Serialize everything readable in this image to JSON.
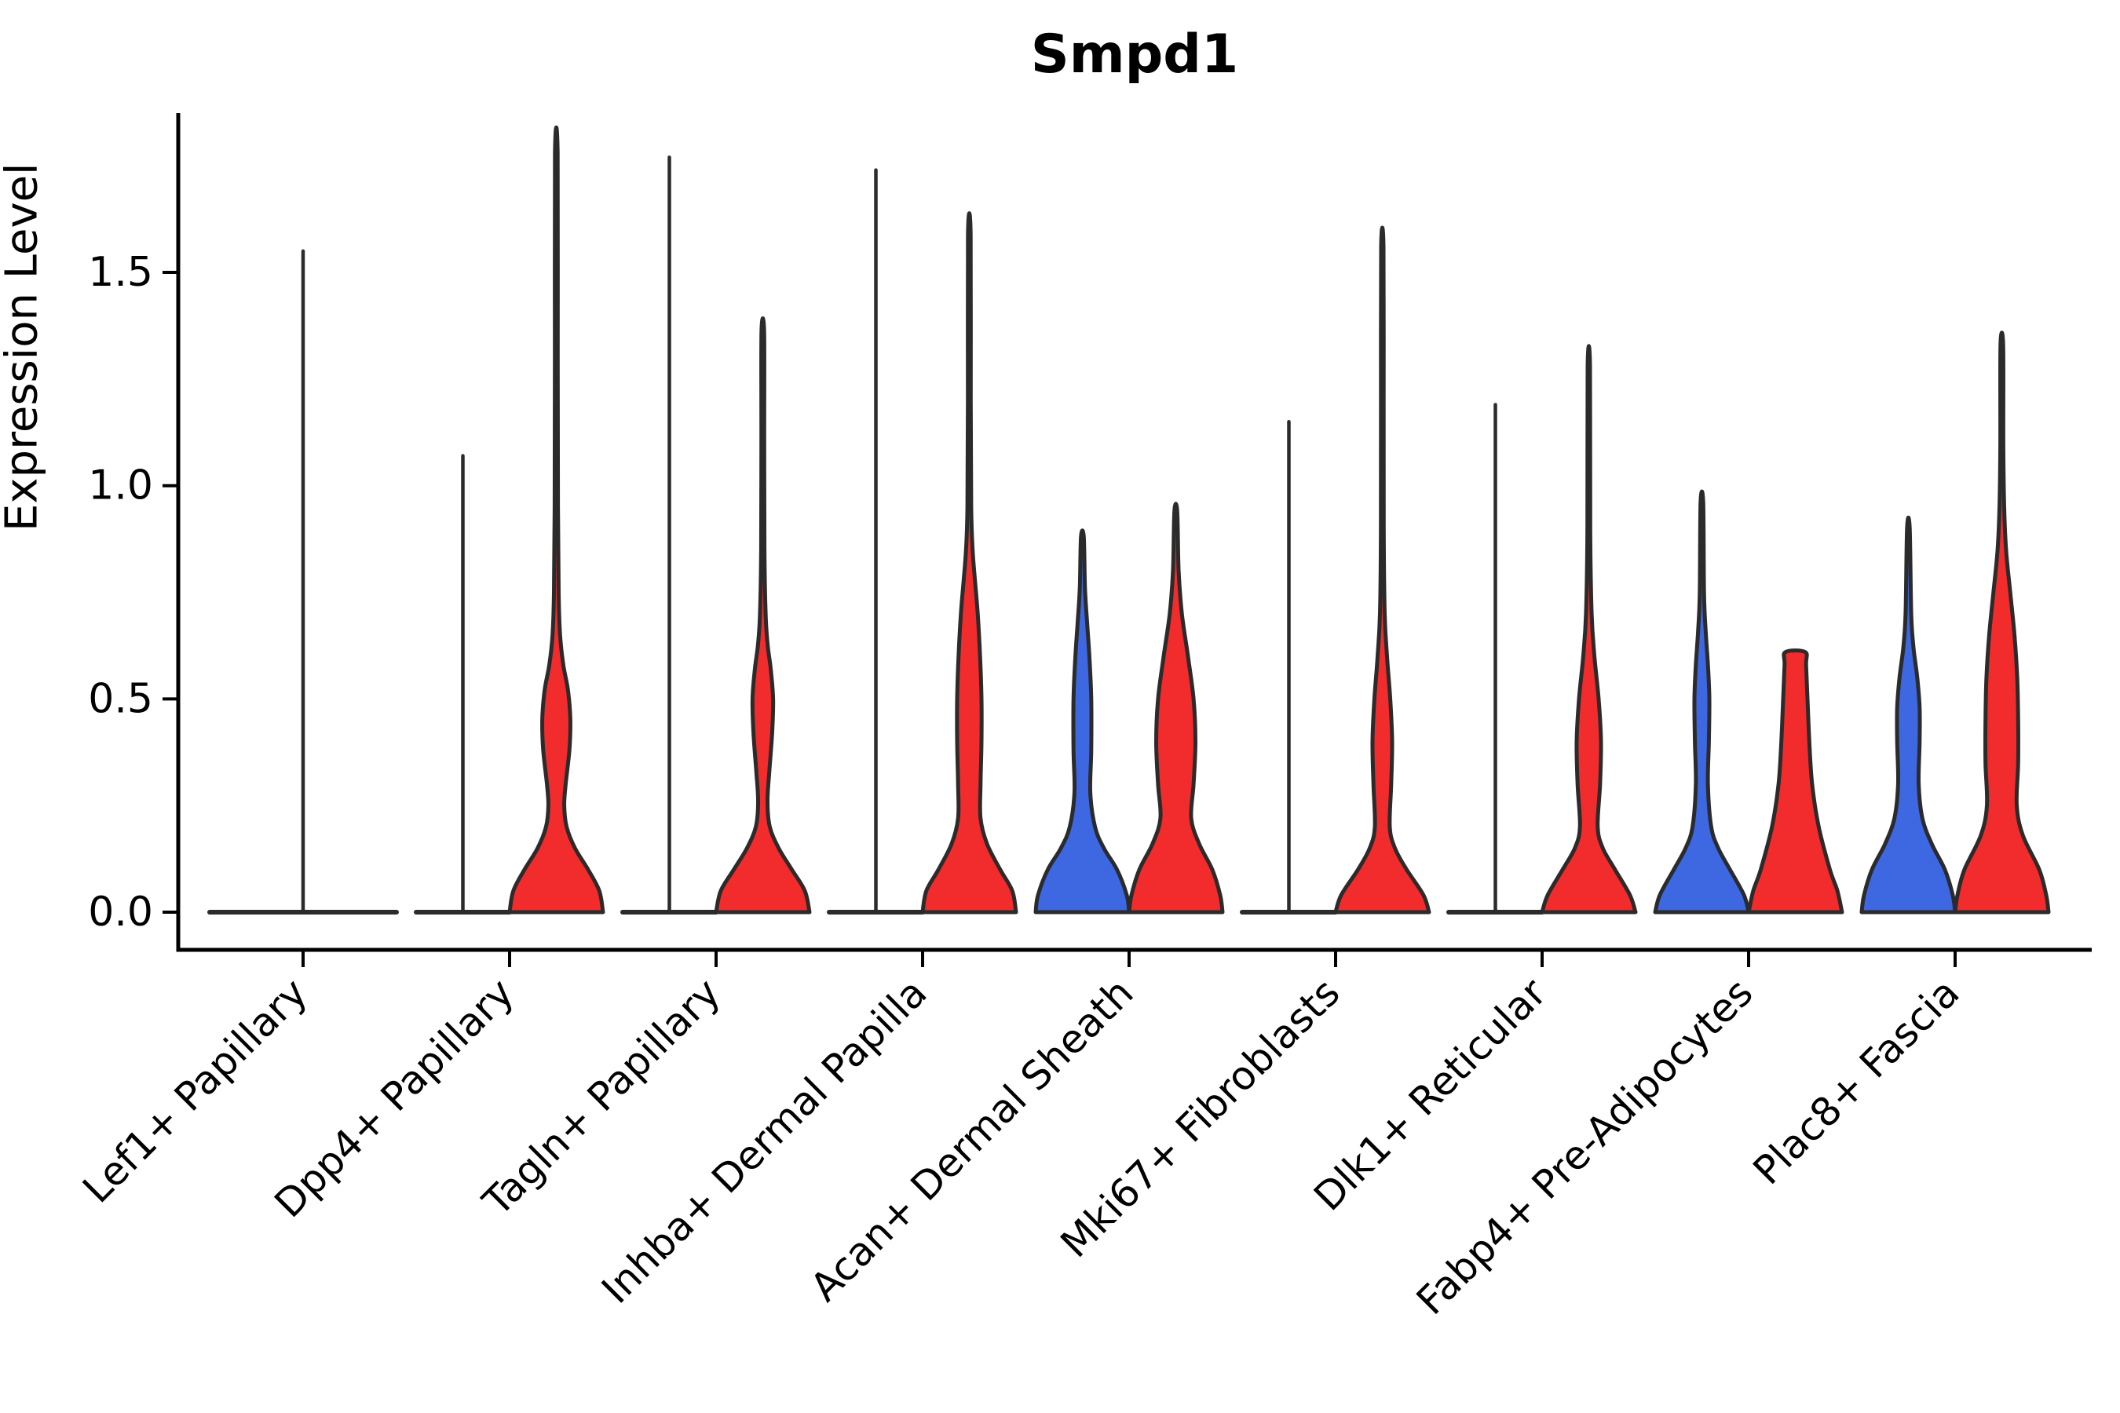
{
  "title": "Smpd1",
  "y_axis": {
    "label": "Expression Level",
    "tick_labels": [
      "0.0",
      "0.5",
      "1.0",
      "1.5"
    ],
    "tick_values": [
      0,
      0.5,
      1.0,
      1.5
    ]
  },
  "x_axis": {
    "categories": [
      "Lef1+ Papillary",
      "Dpp4+ Papillary",
      "Tagln+ Papillary",
      "Inhba+ Dermal Papilla",
      "Acan+ Dermal Sheath",
      "Mki67+ Fibroblasts",
      "Dlk1+ Reticular",
      "Fabp4+ Pre-Adipocytes",
      "Plac8+ Fascia"
    ]
  },
  "palette": {
    "blue": "#3D68E1",
    "red": "#F22C2C",
    "outline": "#2B2B2B",
    "axis": "#000000",
    "background": "#FFFFFF"
  },
  "chart_data": {
    "type": "violin",
    "title": "Smpd1",
    "xlabel": "",
    "ylabel": "Expression Level",
    "ylim": [
      -0.09,
      1.87
    ],
    "y_ticks": [
      0,
      0.5,
      1.0,
      1.5
    ],
    "y_tick_labels": [
      "0.0",
      "0.5",
      "1.0",
      "1.5"
    ],
    "grid": false,
    "legend": "none",
    "categories": [
      "Lef1+ Papillary",
      "Dpp4+ Papillary",
      "Tagln+ Papillary",
      "Inhba+ Dermal Papilla",
      "Acan+ Dermal Sheath",
      "Mki67+ Fibroblasts",
      "Dlk1+ Reticular",
      "Fabp4+ Pre-Adipocytes",
      "Plac8+ Fascia"
    ],
    "violins": [
      {
        "category": "Lef1+ Papillary",
        "side": "full",
        "color": "none",
        "max": 1.55,
        "profile": "flat"
      },
      {
        "category": "Dpp4+ Papillary",
        "side": "left",
        "color": "blue",
        "max": 1.07,
        "profile": "flat"
      },
      {
        "category": "Dpp4+ Papillary",
        "side": "right",
        "color": "red",
        "max": 1.78,
        "profile": [
          [
            0,
            1
          ],
          [
            0.05,
            0.92
          ],
          [
            0.1,
            0.68
          ],
          [
            0.15,
            0.4
          ],
          [
            0.2,
            0.22
          ],
          [
            0.25,
            0.17
          ],
          [
            0.3,
            0.2
          ],
          [
            0.38,
            0.28
          ],
          [
            0.45,
            0.3
          ],
          [
            0.52,
            0.25
          ],
          [
            0.58,
            0.15
          ],
          [
            0.65,
            0.08
          ],
          [
            0.75,
            0.05
          ],
          [
            0.95,
            0.035
          ],
          [
            1.3,
            0.03
          ],
          [
            1.78,
            0.028
          ]
        ]
      },
      {
        "category": "Tagln+ Papillary",
        "side": "left",
        "color": "blue",
        "max": 1.77,
        "profile": "flat"
      },
      {
        "category": "Tagln+ Papillary",
        "side": "right",
        "color": "red",
        "max": 1.36,
        "profile": [
          [
            0,
            1
          ],
          [
            0.05,
            0.9
          ],
          [
            0.1,
            0.62
          ],
          [
            0.15,
            0.34
          ],
          [
            0.2,
            0.15
          ],
          [
            0.26,
            0.1
          ],
          [
            0.33,
            0.14
          ],
          [
            0.42,
            0.2
          ],
          [
            0.5,
            0.22
          ],
          [
            0.57,
            0.17
          ],
          [
            0.63,
            0.1
          ],
          [
            0.7,
            0.06
          ],
          [
            0.85,
            0.035
          ],
          [
            1.1,
            0.03
          ],
          [
            1.36,
            0.028
          ]
        ]
      },
      {
        "category": "Inhba+ Dermal Papilla",
        "side": "left",
        "color": "blue",
        "max": 1.74,
        "profile": "flat"
      },
      {
        "category": "Inhba+ Dermal Papilla",
        "side": "right",
        "color": "red",
        "max": 1.59,
        "profile": [
          [
            0,
            1
          ],
          [
            0.05,
            0.92
          ],
          [
            0.1,
            0.66
          ],
          [
            0.16,
            0.38
          ],
          [
            0.22,
            0.24
          ],
          [
            0.3,
            0.24
          ],
          [
            0.4,
            0.26
          ],
          [
            0.5,
            0.26
          ],
          [
            0.6,
            0.23
          ],
          [
            0.7,
            0.18
          ],
          [
            0.78,
            0.12
          ],
          [
            0.85,
            0.07
          ],
          [
            0.95,
            0.04
          ],
          [
            1.2,
            0.03
          ],
          [
            1.59,
            0.028
          ]
        ]
      },
      {
        "category": "Acan+ Dermal Sheath",
        "side": "left",
        "color": "blue",
        "max": 0.88,
        "profile": [
          [
            0,
            1
          ],
          [
            0.04,
            0.95
          ],
          [
            0.1,
            0.74
          ],
          [
            0.15,
            0.46
          ],
          [
            0.2,
            0.27
          ],
          [
            0.28,
            0.17
          ],
          [
            0.38,
            0.19
          ],
          [
            0.5,
            0.19
          ],
          [
            0.6,
            0.15
          ],
          [
            0.68,
            0.1
          ],
          [
            0.76,
            0.055
          ],
          [
            0.88,
            0.03
          ]
        ]
      },
      {
        "category": "Acan+ Dermal Sheath",
        "side": "right",
        "color": "red",
        "max": 0.94,
        "profile": [
          [
            0,
            1
          ],
          [
            0.04,
            0.95
          ],
          [
            0.1,
            0.78
          ],
          [
            0.16,
            0.5
          ],
          [
            0.22,
            0.33
          ],
          [
            0.3,
            0.38
          ],
          [
            0.4,
            0.42
          ],
          [
            0.5,
            0.38
          ],
          [
            0.6,
            0.26
          ],
          [
            0.7,
            0.13
          ],
          [
            0.8,
            0.06
          ],
          [
            0.94,
            0.03
          ]
        ]
      },
      {
        "category": "Mki67+ Fibroblasts",
        "side": "left",
        "color": "blue",
        "max": 1.15,
        "profile": "flat"
      },
      {
        "category": "Mki67+ Fibroblasts",
        "side": "right",
        "color": "red",
        "max": 1.56,
        "profile": [
          [
            0,
            1
          ],
          [
            0.04,
            0.88
          ],
          [
            0.1,
            0.52
          ],
          [
            0.15,
            0.27
          ],
          [
            0.2,
            0.16
          ],
          [
            0.3,
            0.19
          ],
          [
            0.4,
            0.21
          ],
          [
            0.5,
            0.17
          ],
          [
            0.6,
            0.1
          ],
          [
            0.7,
            0.05
          ],
          [
            0.9,
            0.03
          ],
          [
            1.2,
            0.028
          ],
          [
            1.56,
            0.026
          ]
        ]
      },
      {
        "category": "Dlk1+ Reticular",
        "side": "left",
        "color": "blue",
        "max": 1.19,
        "profile": "flat"
      },
      {
        "category": "Dlk1+ Reticular",
        "side": "right",
        "color": "red",
        "max": 1.28,
        "profile": [
          [
            0,
            1
          ],
          [
            0.04,
            0.88
          ],
          [
            0.1,
            0.56
          ],
          [
            0.15,
            0.3
          ],
          [
            0.2,
            0.19
          ],
          [
            0.3,
            0.24
          ],
          [
            0.4,
            0.26
          ],
          [
            0.5,
            0.21
          ],
          [
            0.6,
            0.12
          ],
          [
            0.7,
            0.06
          ],
          [
            0.9,
            0.03
          ],
          [
            1.28,
            0.026
          ]
        ]
      },
      {
        "category": "Fabp4+ Pre-Adipocytes",
        "side": "left",
        "color": "blue",
        "max": 0.96,
        "profile": [
          [
            0,
            1
          ],
          [
            0.04,
            0.9
          ],
          [
            0.1,
            0.6
          ],
          [
            0.15,
            0.35
          ],
          [
            0.2,
            0.2
          ],
          [
            0.3,
            0.13
          ],
          [
            0.4,
            0.15
          ],
          [
            0.5,
            0.16
          ],
          [
            0.58,
            0.13
          ],
          [
            0.66,
            0.08
          ],
          [
            0.75,
            0.045
          ],
          [
            0.96,
            0.028
          ]
        ]
      },
      {
        "category": "Fabp4+ Pre-Adipocytes",
        "side": "right",
        "color": "red",
        "max": 0.61,
        "flat_top": true,
        "profile": [
          [
            0,
            1
          ],
          [
            0.05,
            0.9
          ],
          [
            0.1,
            0.74
          ],
          [
            0.2,
            0.5
          ],
          [
            0.3,
            0.36
          ],
          [
            0.4,
            0.3
          ],
          [
            0.5,
            0.26
          ],
          [
            0.58,
            0.23
          ],
          [
            0.61,
            0.21
          ]
        ]
      },
      {
        "category": "Plac8+ Fascia",
        "side": "left",
        "color": "blue",
        "max": 0.9,
        "profile": [
          [
            0,
            1
          ],
          [
            0.04,
            0.95
          ],
          [
            0.1,
            0.78
          ],
          [
            0.16,
            0.5
          ],
          [
            0.22,
            0.3
          ],
          [
            0.3,
            0.22
          ],
          [
            0.4,
            0.24
          ],
          [
            0.48,
            0.24
          ],
          [
            0.55,
            0.19
          ],
          [
            0.62,
            0.11
          ],
          [
            0.7,
            0.06
          ],
          [
            0.9,
            0.028
          ]
        ]
      },
      {
        "category": "Plac8+ Fascia",
        "side": "right",
        "color": "red",
        "max": 1.33,
        "profile": [
          [
            0,
            1
          ],
          [
            0.04,
            0.95
          ],
          [
            0.1,
            0.8
          ],
          [
            0.18,
            0.45
          ],
          [
            0.25,
            0.32
          ],
          [
            0.35,
            0.35
          ],
          [
            0.45,
            0.35
          ],
          [
            0.55,
            0.33
          ],
          [
            0.65,
            0.27
          ],
          [
            0.75,
            0.18
          ],
          [
            0.85,
            0.09
          ],
          [
            0.95,
            0.05
          ],
          [
            1.1,
            0.032
          ],
          [
            1.33,
            0.028
          ]
        ]
      }
    ]
  }
}
